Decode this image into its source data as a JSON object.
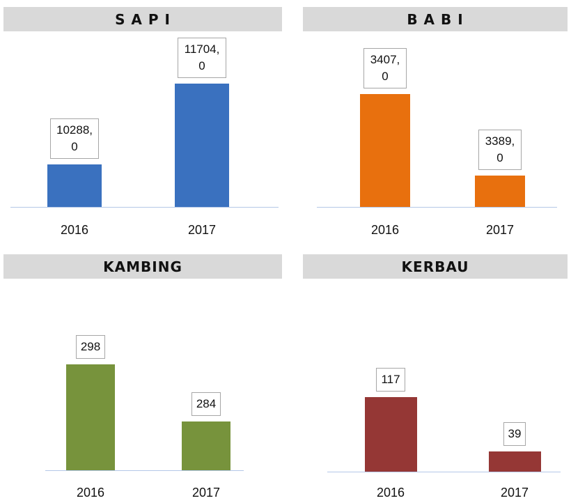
{
  "chart_data": [
    {
      "type": "bar",
      "title": "S A P I",
      "categories": [
        "2016",
        "2017"
      ],
      "values": [
        10288,
        11704
      ],
      "value_labels": [
        "10288,0",
        "11704,0"
      ],
      "color": "#3a71bf",
      "ylim": [
        9540,
        12620
      ]
    },
    {
      "type": "bar",
      "title": "B A B I",
      "categories": [
        "2016",
        "2017"
      ],
      "values": [
        3407,
        3389
      ],
      "value_labels": [
        "3407,0",
        "3389,0"
      ],
      "color": "#e8700e",
      "ylim": [
        3382,
        3421
      ]
    },
    {
      "type": "bar",
      "title": "KAMBING",
      "categories": [
        "2016",
        "2017"
      ],
      "values": [
        298,
        284
      ],
      "color": "#77933c",
      "ylim": [
        272,
        319
      ]
    },
    {
      "type": "bar",
      "title": "KERBAU",
      "categories": [
        "2016",
        "2017"
      ],
      "values": [
        117,
        39
      ],
      "color": "#953735",
      "ylim": [
        10,
        287
      ]
    }
  ]
}
